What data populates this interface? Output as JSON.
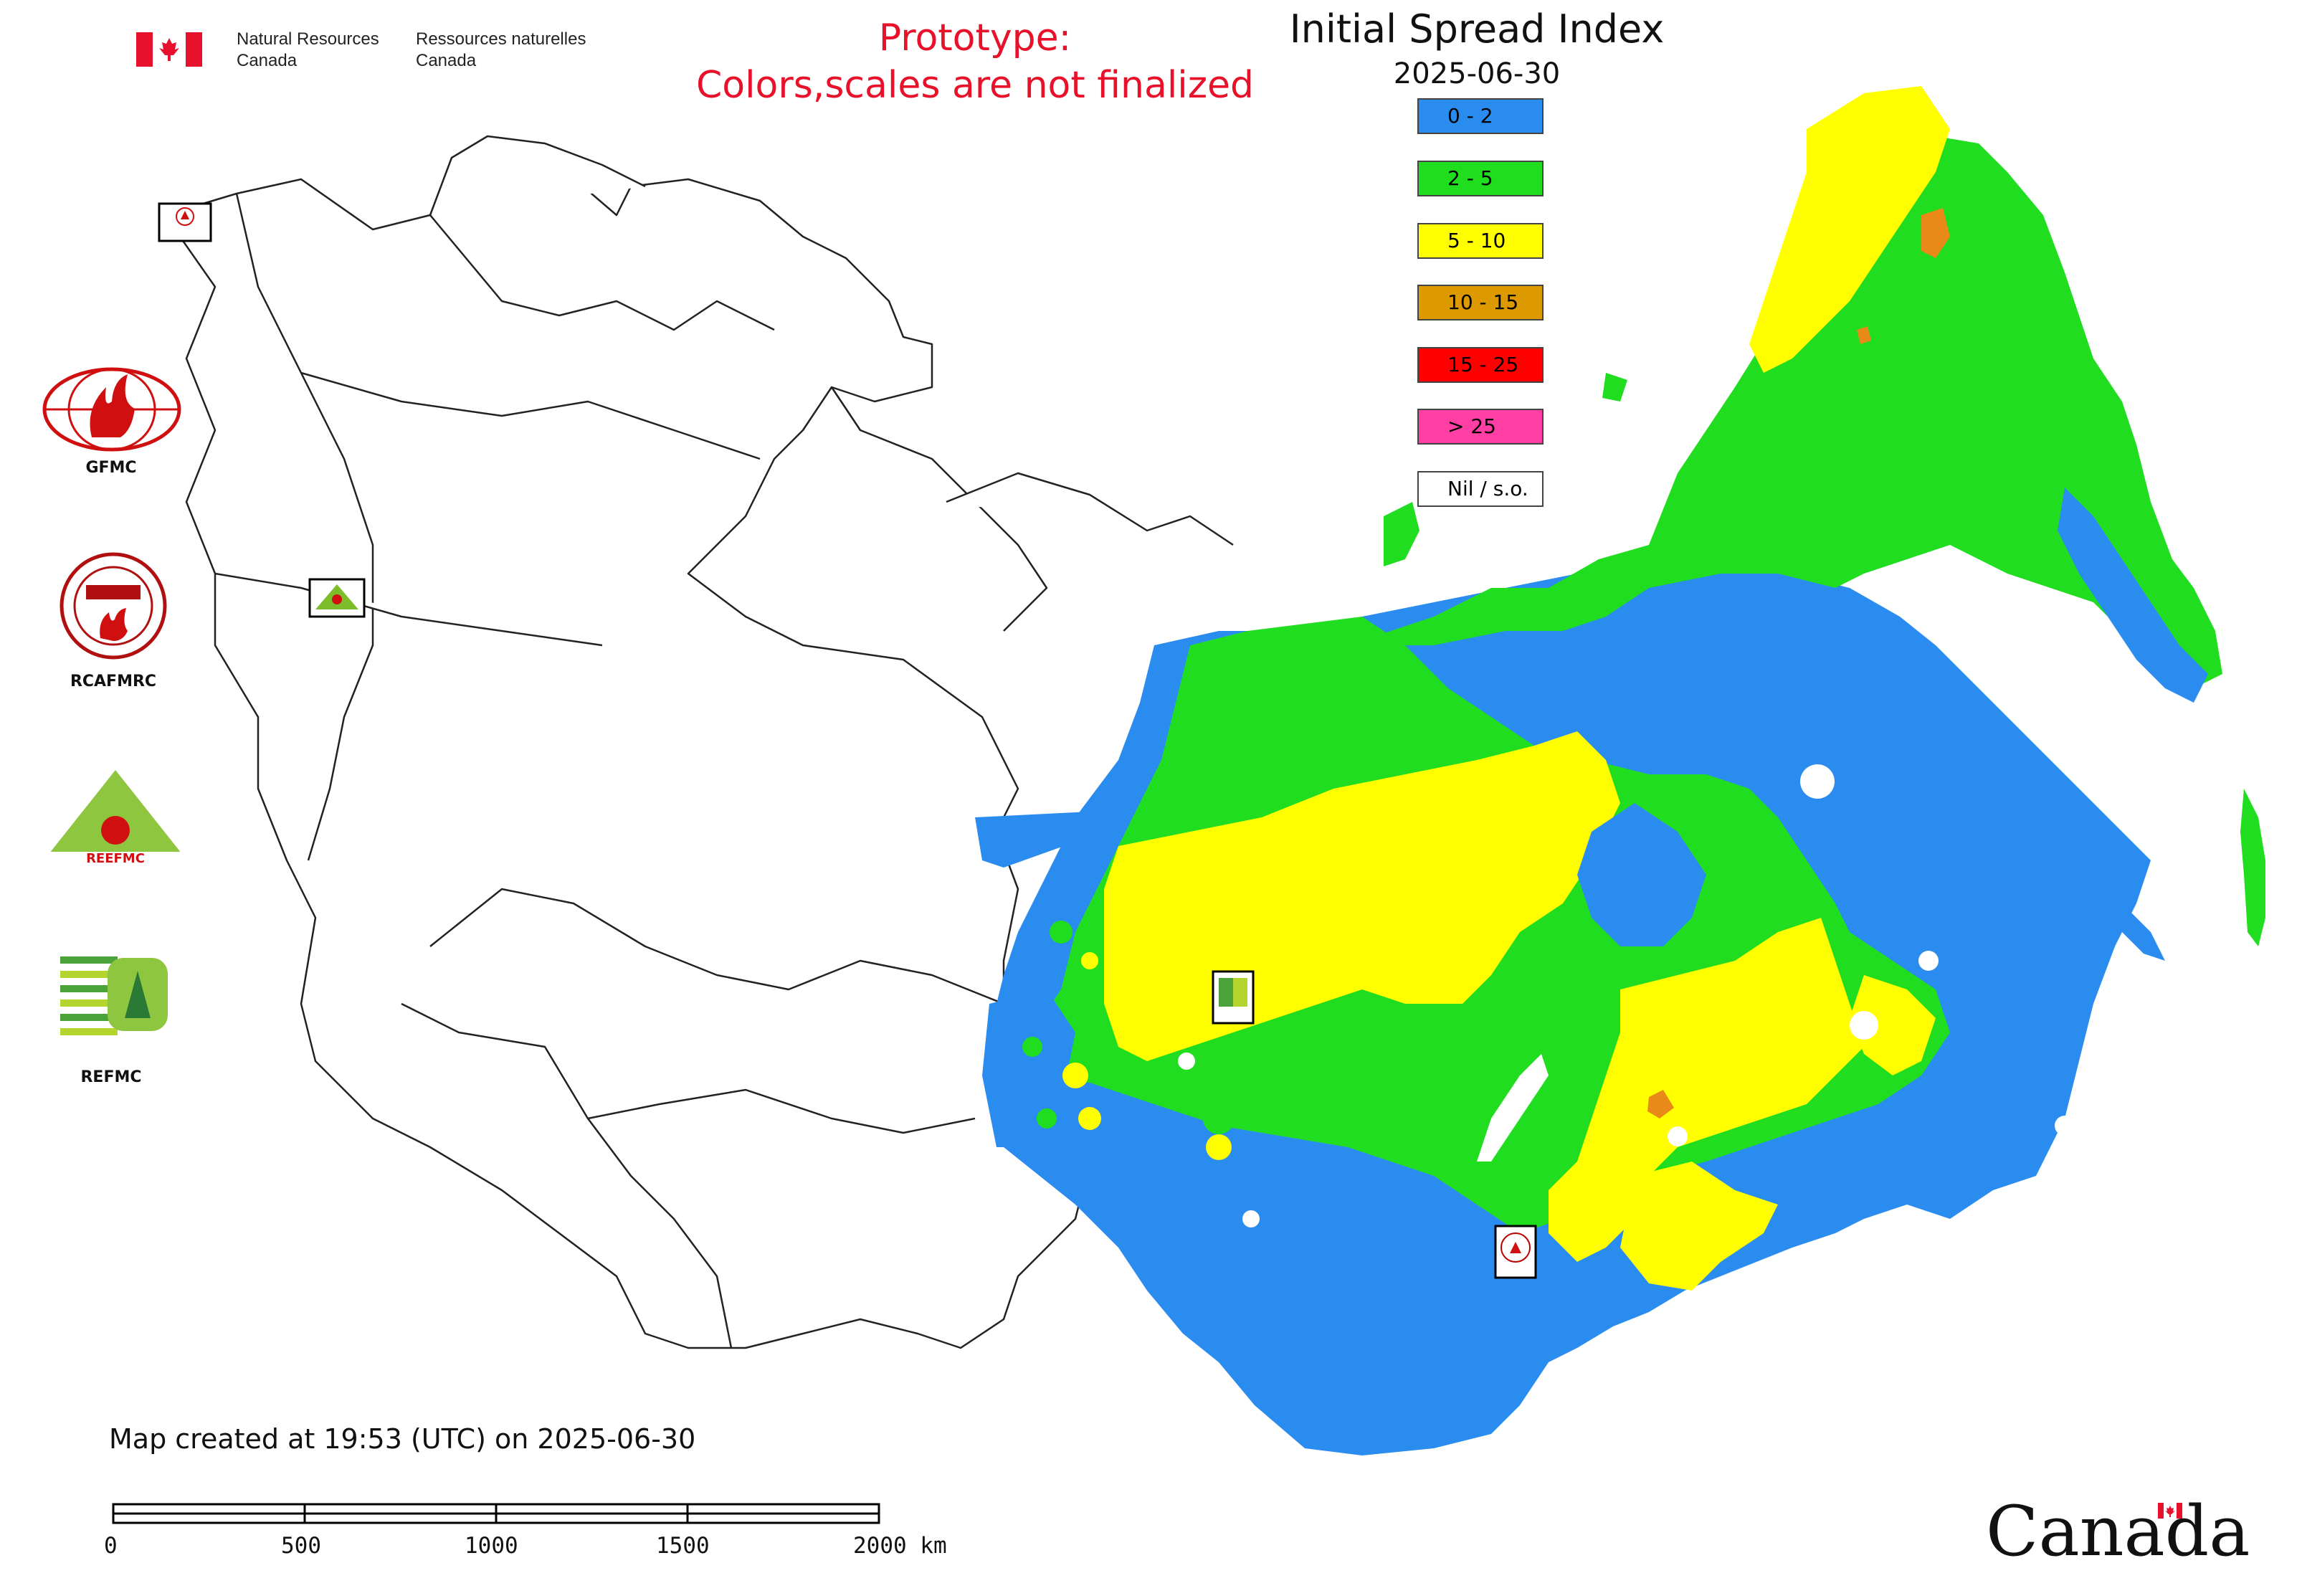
{
  "header": {
    "agency_en": [
      "Natural Resources",
      "Canada"
    ],
    "agency_fr": [
      "Ressources naturelles",
      "Canada"
    ],
    "prototype_lines": [
      "Prototype:",
      "Colors,scales are not finalized"
    ],
    "title": "Initial Spread Index",
    "date": "2025-06-30"
  },
  "legend": [
    {
      "label": "0 - 2",
      "color": "#2b8cf0"
    },
    {
      "label": "2 - 5",
      "color": "#20dd20"
    },
    {
      "label": "5 - 10",
      "color": "#ffff00"
    },
    {
      "label": "10 - 15",
      "color": "#dd9a00"
    },
    {
      "label": "15 - 25",
      "color": "#ff0000"
    },
    {
      "label": "> 25",
      "color": "#ff3fa3"
    },
    {
      "label": "Nil / s.o.",
      "color": "#ffffff"
    }
  ],
  "side_logos": {
    "gfmc": "GFMC",
    "rcafmrc": "RCAFMRC",
    "reefmc": "REEFMC",
    "refmc": "REFMC"
  },
  "map_markers": {
    "gfmc": "GFMC",
    "reefmc": "REEFMC",
    "refmc": "REFMC",
    "rcafmrc": "RCAFMRC"
  },
  "footer": {
    "created": "Map created at 19:53 (UTC) on 2025-06-30",
    "scale_labels": [
      "0",
      "500",
      "1000",
      "1500",
      "2000 km"
    ],
    "wordmark": "Canada"
  },
  "colors": {
    "blue": "#2b8cf0",
    "green": "#20dd20",
    "yellow": "#ffff00",
    "orange": "#e98a18",
    "red_text": "#e8112a"
  }
}
